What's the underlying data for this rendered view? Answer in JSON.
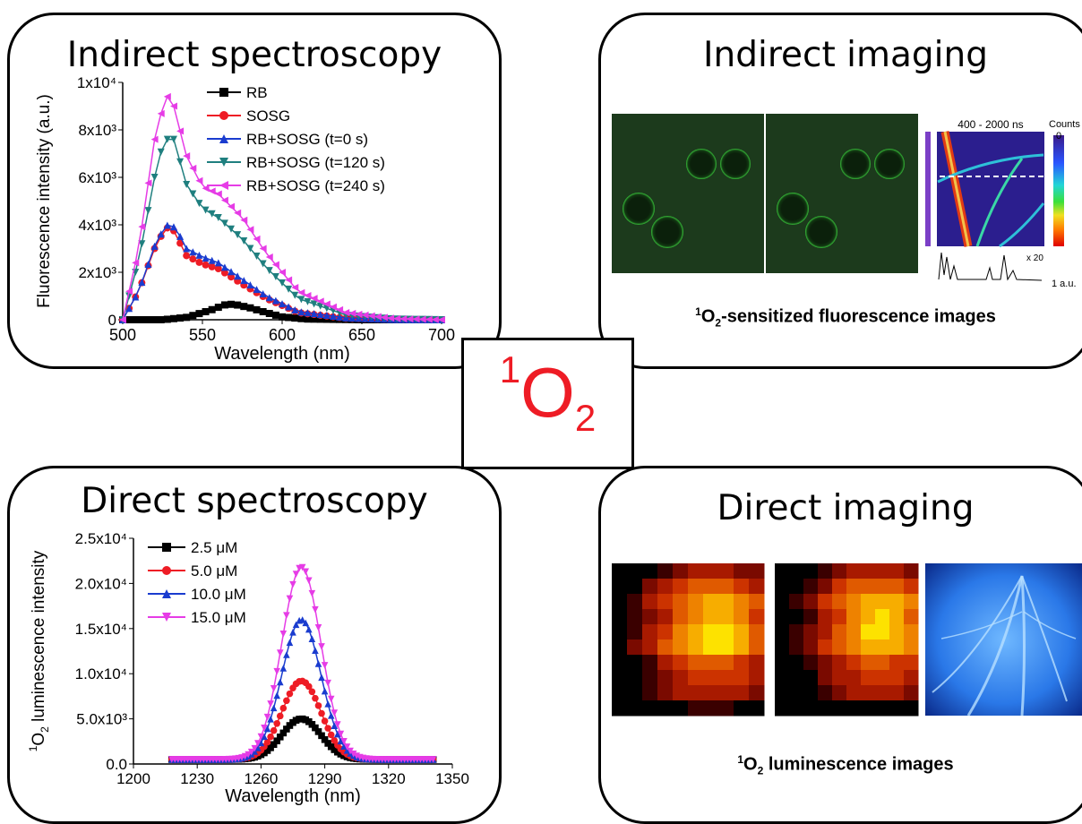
{
  "center": {
    "prefix": "1",
    "main": "O",
    "suffix": "2"
  },
  "panels": {
    "indirect_spectroscopy": {
      "title": "Indirect spectroscopy"
    },
    "indirect_imaging": {
      "title": "Indirect imaging",
      "caption_sup": "1",
      "caption_main": "O",
      "caption_sub": "2",
      "caption_rest": "-sensitized fluorescence images",
      "inset_title": "400 - 2000 ns",
      "colorbar_label": "Counts",
      "colorbar_max": "0",
      "colorbar_min": "1 a.u.",
      "profile_label": "x 20"
    },
    "direct_spectroscopy": {
      "title": "Direct spectroscopy"
    },
    "direct_imaging": {
      "title": "Direct imaging",
      "caption_sup": "1",
      "caption_main": "O",
      "caption_sub": "2",
      "caption_rest": " luminescence images"
    }
  },
  "chart_data": [
    {
      "type": "line",
      "xlabel": "Wavelength (nm)",
      "ylabel": "Fluorescence intensity (a.u.)",
      "xlim": [
        500,
        700
      ],
      "ylim": [
        0,
        10000
      ],
      "xticks": [
        "500",
        "550",
        "600",
        "650",
        "700"
      ],
      "yticks": [
        {
          "v": 0,
          "label": "0"
        },
        {
          "v": 2000,
          "label": "2x10³"
        },
        {
          "v": 4000,
          "label": "4x10³"
        },
        {
          "v": 6000,
          "label": "6x10³"
        },
        {
          "v": 8000,
          "label": "8x10³"
        },
        {
          "v": 10000,
          "label": "1x10⁴"
        }
      ],
      "series": [
        {
          "name": "RB",
          "color": "#000000",
          "marker": "square",
          "x": [
            500,
            525,
            540,
            555,
            565,
            570,
            580,
            590,
            600,
            615,
            650,
            700
          ],
          "y": [
            0,
            0,
            100,
            400,
            650,
            650,
            500,
            300,
            120,
            30,
            0,
            0
          ]
        },
        {
          "name": "SOSG",
          "color": "#ee1c25",
          "marker": "circle",
          "x": [
            500,
            510,
            520,
            527,
            532,
            540,
            550,
            560,
            575,
            590,
            610,
            640,
            670,
            700
          ],
          "y": [
            0,
            1200,
            3000,
            3900,
            3750,
            2700,
            2350,
            2150,
            1500,
            900,
            300,
            60,
            10,
            0
          ]
        },
        {
          "name": "RB+SOSG (t=0 s)",
          "color": "#1a3ccf",
          "marker": "triangle-up",
          "x": [
            500,
            510,
            520,
            527,
            533,
            540,
            550,
            560,
            575,
            590,
            610,
            640,
            670,
            700
          ],
          "y": [
            0,
            1200,
            3100,
            4000,
            3900,
            3000,
            2650,
            2400,
            1700,
            1000,
            350,
            80,
            10,
            0
          ]
        },
        {
          "name": "RB+SOSG (t=120 s)",
          "color": "#1f7f7f",
          "marker": "triangle-down",
          "x": [
            500,
            510,
            520,
            526,
            532,
            540,
            550,
            560,
            575,
            590,
            610,
            640,
            670,
            700
          ],
          "y": [
            0,
            2500,
            6000,
            7600,
            7600,
            5700,
            4700,
            4300,
            3400,
            2200,
            900,
            200,
            30,
            0
          ]
        },
        {
          "name": "RB+SOSG (t=240 s)",
          "color": "#e63ce6",
          "marker": "triangle-left",
          "x": [
            500,
            510,
            520,
            527,
            532,
            540,
            550,
            560,
            575,
            590,
            610,
            640,
            670,
            700
          ],
          "y": [
            0,
            3000,
            7600,
            9500,
            9000,
            6900,
            5600,
            5300,
            4300,
            2800,
            1200,
            300,
            50,
            0
          ]
        }
      ]
    },
    {
      "type": "line",
      "xlabel": "Wavelength (nm)",
      "ylabel_sup": "1",
      "ylabel_main": "O",
      "ylabel_sub": "2",
      "ylabel_rest": " luminescence intensity",
      "xlim": [
        1200,
        1350
      ],
      "ylim": [
        0,
        25000
      ],
      "xticks": [
        "1200",
        "1230",
        "1260",
        "1290",
        "1320",
        "1350"
      ],
      "yticks": [
        {
          "v": 0,
          "label": "0.0"
        },
        {
          "v": 5000,
          "label": "5.0x10³"
        },
        {
          "v": 10000,
          "label": "1.0x10⁴"
        },
        {
          "v": 15000,
          "label": "1.5x10⁴"
        },
        {
          "v": 20000,
          "label": "2.0x10⁴"
        },
        {
          "v": 25000,
          "label": "2.5x10⁴"
        }
      ],
      "gaussian": {
        "center": 1279,
        "sigma": 9.2,
        "baseline": 500,
        "xrange": [
          1218,
          1342
        ]
      },
      "series": [
        {
          "name": "2.5 μM",
          "color": "#000000",
          "marker": "square",
          "peak": 5000
        },
        {
          "name": "5.0 μM",
          "color": "#ee1c25",
          "marker": "circle",
          "peak": 9200
        },
        {
          "name": "10.0 μM",
          "color": "#1a3ccf",
          "marker": "triangle-up",
          "peak": 16000
        },
        {
          "name": "15.0 μM",
          "color": "#e63ce6",
          "marker": "triangle-down",
          "peak": 21800
        }
      ]
    }
  ]
}
